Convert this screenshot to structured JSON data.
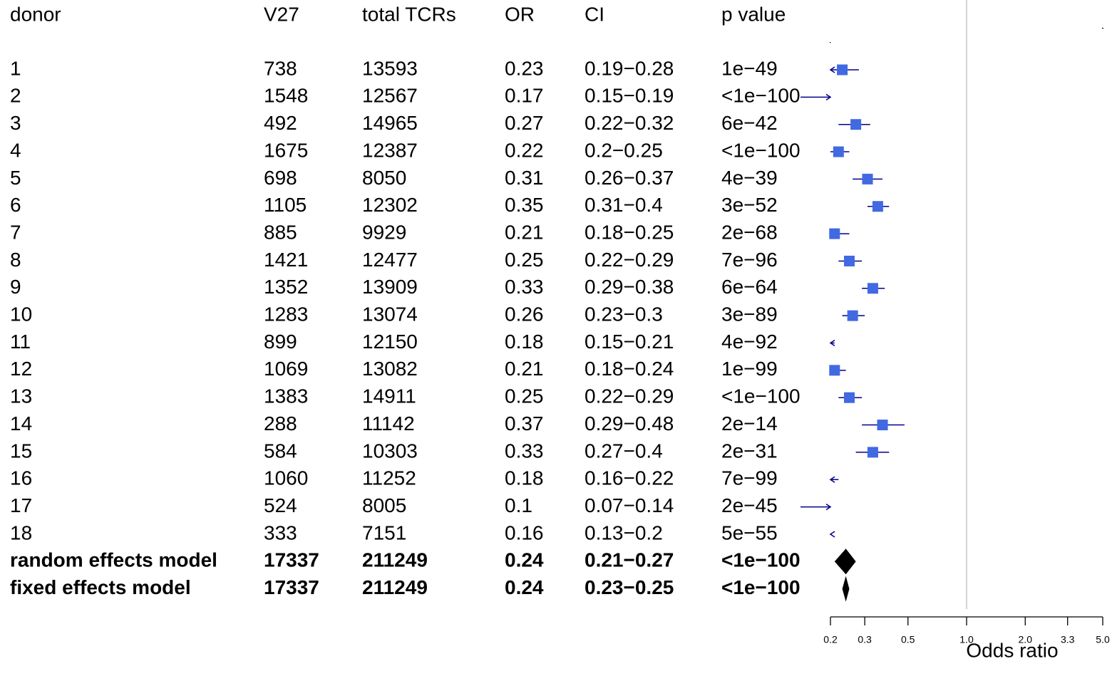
{
  "headers": [
    "donor",
    "V27",
    "total TCRs",
    "OR",
    "CI",
    "p value"
  ],
  "rows": [
    {
      "donor": "1",
      "v27": "738",
      "total": "13593",
      "or": "0.23",
      "ci": "0.19−0.28",
      "p": "1e−49"
    },
    {
      "donor": "2",
      "v27": "1548",
      "total": "12567",
      "or": "0.17",
      "ci": "0.15−0.19",
      "p": "<1e−100"
    },
    {
      "donor": "3",
      "v27": "492",
      "total": "14965",
      "or": "0.27",
      "ci": "0.22−0.32",
      "p": "6e−42"
    },
    {
      "donor": "4",
      "v27": "1675",
      "total": "12387",
      "or": "0.22",
      "ci": "0.2−0.25",
      "p": "<1e−100"
    },
    {
      "donor": "5",
      "v27": "698",
      "total": "8050",
      "or": "0.31",
      "ci": "0.26−0.37",
      "p": "4e−39"
    },
    {
      "donor": "6",
      "v27": "1105",
      "total": "12302",
      "or": "0.35",
      "ci": "0.31−0.4",
      "p": "3e−52"
    },
    {
      "donor": "7",
      "v27": "885",
      "total": "9929",
      "or": "0.21",
      "ci": "0.18−0.25",
      "p": "2e−68"
    },
    {
      "donor": "8",
      "v27": "1421",
      "total": "12477",
      "or": "0.25",
      "ci": "0.22−0.29",
      "p": "7e−96"
    },
    {
      "donor": "9",
      "v27": "1352",
      "total": "13909",
      "or": "0.33",
      "ci": "0.29−0.38",
      "p": "6e−64"
    },
    {
      "donor": "10",
      "v27": "1283",
      "total": "13074",
      "or": "0.26",
      "ci": "0.23−0.3",
      "p": "3e−89"
    },
    {
      "donor": "11",
      "v27": "899",
      "total": "12150",
      "or": "0.18",
      "ci": "0.15−0.21",
      "p": "4e−92"
    },
    {
      "donor": "12",
      "v27": "1069",
      "total": "13082",
      "or": "0.21",
      "ci": "0.18−0.24",
      "p": "1e−99"
    },
    {
      "donor": "13",
      "v27": "1383",
      "total": "14911",
      "or": "0.25",
      "ci": "0.22−0.29",
      "p": "<1e−100"
    },
    {
      "donor": "14",
      "v27": "288",
      "total": "11142",
      "or": "0.37",
      "ci": "0.29−0.48",
      "p": "2e−14"
    },
    {
      "donor": "15",
      "v27": "584",
      "total": "10303",
      "or": "0.33",
      "ci": "0.27−0.4",
      "p": "2e−31"
    },
    {
      "donor": "16",
      "v27": "1060",
      "total": "11252",
      "or": "0.18",
      "ci": "0.16−0.22",
      "p": "7e−99"
    },
    {
      "donor": "17",
      "v27": "524",
      "total": "8005",
      "or": "0.1",
      "ci": "0.07−0.14",
      "p": "2e−45"
    },
    {
      "donor": "18",
      "v27": "333",
      "total": "7151",
      "or": "0.16",
      "ci": "0.13−0.2",
      "p": "5e−55"
    }
  ],
  "summary_rows": [
    {
      "donor": "random effects model",
      "v27": "17337",
      "total": "211249",
      "or": "0.24",
      "ci": "0.21−0.27",
      "p": "<1e−100"
    },
    {
      "donor": "fixed effects model",
      "v27": "17337",
      "total": "211249",
      "or": "0.24",
      "ci": "0.23−0.25",
      "p": "<1e−100"
    }
  ],
  "chart_data": {
    "type": "forest",
    "xlabel": "Odds ratio",
    "x_scale": "log",
    "xlim": [
      0.2,
      5.0
    ],
    "x_ticks": [
      0.2,
      0.3,
      0.5,
      1.0,
      2.0,
      3.3,
      5.0
    ],
    "x_tick_labels": [
      "0.2",
      "0.3",
      "0.5",
      "1.0",
      "2.0",
      "3.3",
      "5.0"
    ],
    "reference_line": 1.0,
    "estimates": [
      {
        "or": 0.23,
        "lo": 0.19,
        "hi": 0.28
      },
      {
        "or": 0.17,
        "lo": 0.15,
        "hi": 0.19
      },
      {
        "or": 0.27,
        "lo": 0.22,
        "hi": 0.32
      },
      {
        "or": 0.22,
        "lo": 0.2,
        "hi": 0.25
      },
      {
        "or": 0.31,
        "lo": 0.26,
        "hi": 0.37
      },
      {
        "or": 0.35,
        "lo": 0.31,
        "hi": 0.4
      },
      {
        "or": 0.21,
        "lo": 0.18,
        "hi": 0.25
      },
      {
        "or": 0.25,
        "lo": 0.22,
        "hi": 0.29
      },
      {
        "or": 0.33,
        "lo": 0.29,
        "hi": 0.38
      },
      {
        "or": 0.26,
        "lo": 0.23,
        "hi": 0.3
      },
      {
        "or": 0.18,
        "lo": 0.15,
        "hi": 0.21
      },
      {
        "or": 0.21,
        "lo": 0.18,
        "hi": 0.24
      },
      {
        "or": 0.25,
        "lo": 0.22,
        "hi": 0.29
      },
      {
        "or": 0.37,
        "lo": 0.29,
        "hi": 0.48
      },
      {
        "or": 0.33,
        "lo": 0.27,
        "hi": 0.4
      },
      {
        "or": 0.18,
        "lo": 0.16,
        "hi": 0.22
      },
      {
        "or": 0.1,
        "lo": 0.07,
        "hi": 0.14
      },
      {
        "or": 0.16,
        "lo": 0.13,
        "hi": 0.2
      }
    ],
    "summaries": [
      {
        "or": 0.24,
        "lo": 0.21,
        "hi": 0.27
      },
      {
        "or": 0.24,
        "lo": 0.23,
        "hi": 0.25
      }
    ],
    "colors": {
      "point": "#4169E1",
      "ci_line": "#00008B",
      "summary": "#000000",
      "reference": "#BEBEBE"
    }
  }
}
